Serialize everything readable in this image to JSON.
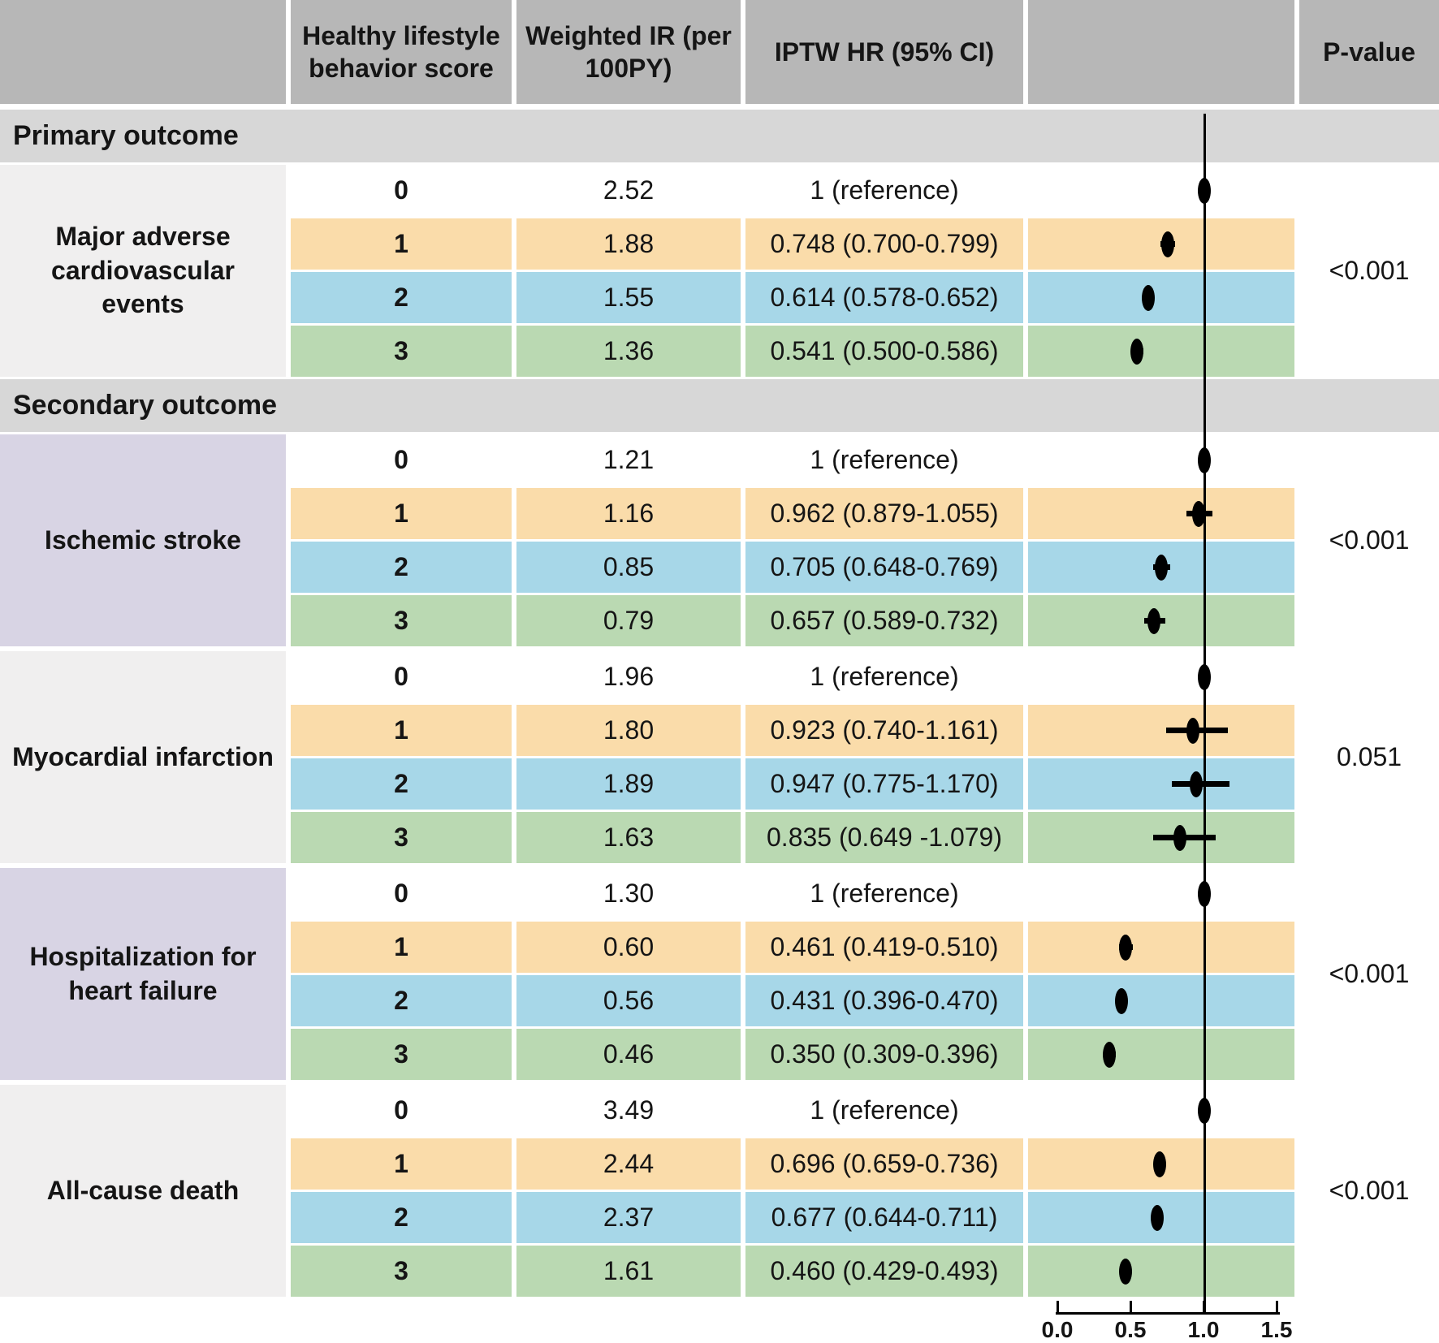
{
  "table": {
    "headers": {
      "score": "Healthy lifestyle behavior score",
      "ir": "Weighted IR (per 100PY)",
      "hr": "IPTW HR (95% CI)",
      "p": "P-value"
    },
    "section_labels": {
      "primary": "Primary outcome",
      "secondary": "Secondary outcome"
    },
    "outcomes": [
      {
        "name": "Major adverse cardiovascular events",
        "p_value": "<0.001",
        "rows": [
          {
            "score": "0",
            "ir": "2.52",
            "hr_text": "1 (reference)"
          },
          {
            "score": "1",
            "ir": "1.88",
            "hr_text": "0.748 (0.700-0.799)"
          },
          {
            "score": "2",
            "ir": "1.55",
            "hr_text": "0.614 (0.578-0.652)"
          },
          {
            "score": "3",
            "ir": "1.36",
            "hr_text": "0.541 (0.500-0.586)"
          }
        ]
      },
      {
        "name": "Ischemic stroke",
        "p_value": "<0.001",
        "rows": [
          {
            "score": "0",
            "ir": "1.21",
            "hr_text": "1 (reference)"
          },
          {
            "score": "1",
            "ir": "1.16",
            "hr_text": "0.962 (0.879-1.055)"
          },
          {
            "score": "2",
            "ir": "0.85",
            "hr_text": "0.705 (0.648-0.769)"
          },
          {
            "score": "3",
            "ir": "0.79",
            "hr_text": "0.657 (0.589-0.732)"
          }
        ]
      },
      {
        "name": "Myocardial infarction",
        "p_value": "0.051",
        "rows": [
          {
            "score": "0",
            "ir": "1.96",
            "hr_text": "1 (reference)"
          },
          {
            "score": "1",
            "ir": "1.80",
            "hr_text": "0.923 (0.740-1.161)"
          },
          {
            "score": "2",
            "ir": "1.89",
            "hr_text": "0.947 (0.775-1.170)"
          },
          {
            "score": "3",
            "ir": "1.63",
            "hr_text": "0.835 (0.649 -1.079)"
          }
        ]
      },
      {
        "name": "Hospitalization for heart failure",
        "p_value": "<0.001",
        "rows": [
          {
            "score": "0",
            "ir": "1.30",
            "hr_text": "1 (reference)"
          },
          {
            "score": "1",
            "ir": "0.60",
            "hr_text": "0.461 (0.419-0.510)"
          },
          {
            "score": "2",
            "ir": "0.56",
            "hr_text": "0.431 (0.396-0.470)"
          },
          {
            "score": "3",
            "ir": "0.46",
            "hr_text": "0.350 (0.309-0.396)"
          }
        ]
      },
      {
        "name": "All-cause death",
        "p_value": "<0.001",
        "rows": [
          {
            "score": "0",
            "ir": "3.49",
            "hr_text": "1 (reference)"
          },
          {
            "score": "1",
            "ir": "2.44",
            "hr_text": "0.696 (0.659-0.736)"
          },
          {
            "score": "2",
            "ir": "2.37",
            "hr_text": "0.677 (0.644-0.711)"
          },
          {
            "score": "3",
            "ir": "1.61",
            "hr_text": "0.460 (0.429-0.493)"
          }
        ]
      }
    ]
  },
  "axis": {
    "ticks": [
      "0.0",
      "0.5",
      "1.0",
      "1.5"
    ]
  },
  "colors": {
    "header_bg": "#b7b7b7",
    "section_band_bg": "#d7d7d7",
    "outcome_cell_gray": "#f0efef",
    "outcome_cell_lavender": "#d8d4e4",
    "row_score1": "#fadcaa",
    "row_score2": "#a7d7e8",
    "row_score3": "#bad9b2",
    "marker": "#000000"
  },
  "chart_data": {
    "type": "scatter",
    "subtype": "forest-plot",
    "title": "",
    "xlabel": "",
    "ylabel": "",
    "xlim": [
      0,
      1.5
    ],
    "x_ticks": [
      0.0,
      0.5,
      1.0,
      1.5
    ],
    "reference_line_x": 1.0,
    "legend_position": "none",
    "grid": false,
    "series": [
      {
        "name": "Major adverse cardiovascular events",
        "p_value": "<0.001",
        "points": [
          {
            "score": 0,
            "hr": 1.0,
            "ci_low": null,
            "ci_high": null
          },
          {
            "score": 1,
            "hr": 0.748,
            "ci_low": 0.7,
            "ci_high": 0.799
          },
          {
            "score": 2,
            "hr": 0.614,
            "ci_low": 0.578,
            "ci_high": 0.652
          },
          {
            "score": 3,
            "hr": 0.541,
            "ci_low": 0.5,
            "ci_high": 0.586
          }
        ]
      },
      {
        "name": "Ischemic stroke",
        "p_value": "<0.001",
        "points": [
          {
            "score": 0,
            "hr": 1.0,
            "ci_low": null,
            "ci_high": null
          },
          {
            "score": 1,
            "hr": 0.962,
            "ci_low": 0.879,
            "ci_high": 1.055
          },
          {
            "score": 2,
            "hr": 0.705,
            "ci_low": 0.648,
            "ci_high": 0.769
          },
          {
            "score": 3,
            "hr": 0.657,
            "ci_low": 0.589,
            "ci_high": 0.732
          }
        ]
      },
      {
        "name": "Myocardial infarction",
        "p_value": "0.051",
        "points": [
          {
            "score": 0,
            "hr": 1.0,
            "ci_low": null,
            "ci_high": null
          },
          {
            "score": 1,
            "hr": 0.923,
            "ci_low": 0.74,
            "ci_high": 1.161
          },
          {
            "score": 2,
            "hr": 0.947,
            "ci_low": 0.775,
            "ci_high": 1.17
          },
          {
            "score": 3,
            "hr": 0.835,
            "ci_low": 0.649,
            "ci_high": 1.079
          }
        ]
      },
      {
        "name": "Hospitalization for heart failure",
        "p_value": "<0.001",
        "points": [
          {
            "score": 0,
            "hr": 1.0,
            "ci_low": null,
            "ci_high": null
          },
          {
            "score": 1,
            "hr": 0.461,
            "ci_low": 0.419,
            "ci_high": 0.51
          },
          {
            "score": 2,
            "hr": 0.431,
            "ci_low": 0.396,
            "ci_high": 0.47
          },
          {
            "score": 3,
            "hr": 0.35,
            "ci_low": 0.309,
            "ci_high": 0.396
          }
        ]
      },
      {
        "name": "All-cause death",
        "p_value": "<0.001",
        "points": [
          {
            "score": 0,
            "hr": 1.0,
            "ci_low": null,
            "ci_high": null
          },
          {
            "score": 1,
            "hr": 0.696,
            "ci_low": 0.659,
            "ci_high": 0.736
          },
          {
            "score": 2,
            "hr": 0.677,
            "ci_low": 0.644,
            "ci_high": 0.711
          },
          {
            "score": 3,
            "hr": 0.46,
            "ci_low": 0.429,
            "ci_high": 0.493
          }
        ]
      }
    ]
  }
}
